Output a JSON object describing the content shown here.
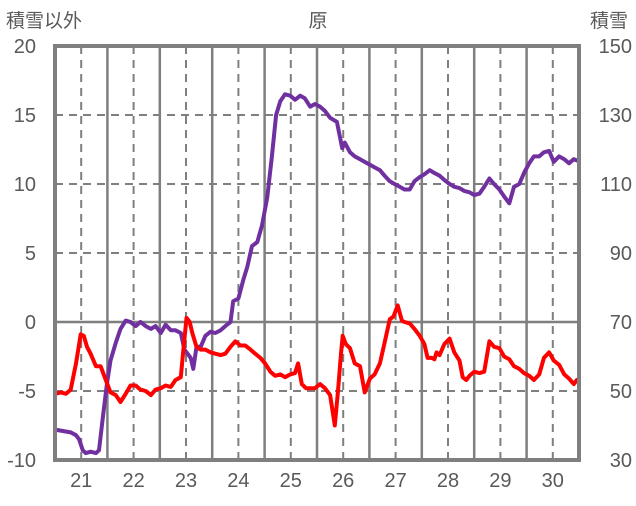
{
  "chart_data": {
    "type": "line",
    "title": "原",
    "ylabel_left": "積雪以外",
    "ylabel_right": "積雪",
    "xlim": [
      20.5,
      30.5
    ],
    "ylim_left": [
      -10,
      20
    ],
    "ylim_right": [
      30,
      150
    ],
    "x_ticks": [
      "21",
      "22",
      "23",
      "24",
      "25",
      "26",
      "27",
      "28",
      "29",
      "30"
    ],
    "y_ticks_left": [
      "-10",
      "-5",
      "0",
      "5",
      "10",
      "15",
      "20"
    ],
    "y_ticks_right": [
      "30",
      "50",
      "70",
      "90",
      "110",
      "130",
      "150"
    ],
    "grid": true,
    "series": [
      {
        "name": "積雪",
        "axis": "right",
        "color": "#7030a0",
        "x": [
          20.5,
          20.8,
          20.9,
          20.96,
          21.03,
          21.09,
          21.18,
          21.28,
          21.34,
          21.41,
          21.49,
          21.56,
          21.66,
          21.75,
          21.85,
          21.94,
          22.04,
          22.13,
          22.23,
          22.33,
          22.42,
          22.52,
          22.61,
          22.71,
          22.8,
          22.9,
          22.97,
          23.03,
          23.09,
          23.14,
          23.2,
          23.28,
          23.37,
          23.47,
          23.56,
          23.66,
          23.75,
          23.85,
          23.9,
          24.0,
          24.09,
          24.17,
          24.26,
          24.36,
          24.45,
          24.55,
          24.64,
          24.72,
          24.8,
          24.89,
          24.99,
          25.08,
          25.18,
          25.27,
          25.37,
          25.46,
          25.56,
          25.65,
          25.75,
          25.88,
          25.98,
          26.03,
          26.13,
          26.22,
          26.32,
          26.41,
          26.51,
          26.6,
          26.7,
          26.79,
          26.89,
          26.98,
          27.08,
          27.17,
          27.27,
          27.36,
          27.46,
          27.55,
          27.65,
          27.74,
          27.84,
          27.93,
          28.03,
          28.12,
          28.22,
          28.31,
          28.41,
          28.5,
          28.6,
          28.69,
          28.79,
          28.88,
          28.98,
          29.07,
          29.17,
          29.26,
          29.36,
          29.45,
          29.55,
          29.64,
          29.74,
          29.83,
          29.93,
          30.02,
          30.12,
          30.22,
          30.31,
          30.4,
          30.46
        ],
        "values": [
          38.8,
          38,
          37.2,
          36,
          32.8,
          32,
          32.4,
          32,
          32.8,
          42,
          52,
          58.8,
          64,
          68,
          70.4,
          70,
          68.8,
          70,
          68.8,
          68,
          68.8,
          66.8,
          69.2,
          67.6,
          67.6,
          66.8,
          62,
          60.8,
          59.6,
          56.4,
          62.8,
          62.8,
          66,
          67.2,
          66.8,
          67.6,
          68.8,
          70,
          76,
          76.8,
          82,
          86,
          92,
          93.2,
          98,
          106,
          118,
          130,
          134,
          136,
          135.6,
          134.4,
          135.6,
          134.8,
          132.4,
          133.2,
          132.4,
          131.2,
          129.2,
          128,
          120.4,
          122,
          119.2,
          118,
          117.2,
          116.4,
          115.6,
          114.8,
          114,
          112.4,
          110.8,
          110,
          109.2,
          108.4,
          108.4,
          110.8,
          112,
          112.8,
          114,
          113.2,
          112.4,
          111.2,
          110,
          109.2,
          108.8,
          108,
          107.6,
          106.8,
          107.2,
          109.2,
          111.6,
          110,
          108.4,
          106.4,
          104.4,
          109.2,
          110,
          113.2,
          116,
          118,
          118,
          119.2,
          119.6,
          116.4,
          118,
          117.2,
          116,
          117.2,
          116.8
        ]
      },
      {
        "name": "積雪以外",
        "axis": "left",
        "color": "#ff0000",
        "x": [
          20.5,
          20.61,
          20.71,
          20.8,
          20.9,
          20.99,
          21.05,
          21.11,
          21.18,
          21.28,
          21.37,
          21.47,
          21.56,
          21.66,
          21.75,
          21.85,
          21.94,
          22.04,
          22.13,
          22.23,
          22.33,
          22.42,
          22.52,
          22.61,
          22.71,
          22.8,
          22.9,
          22.95,
          23.01,
          23.07,
          23.12,
          23.2,
          23.28,
          23.37,
          23.47,
          23.56,
          23.66,
          23.75,
          23.85,
          23.94,
          24.04,
          24.13,
          24.23,
          24.32,
          24.42,
          24.51,
          24.61,
          24.7,
          24.8,
          24.89,
          24.99,
          25.08,
          25.14,
          25.21,
          25.29,
          25.37,
          25.46,
          25.56,
          25.65,
          25.75,
          25.84,
          25.9,
          25.96,
          25.99,
          26.05,
          26.13,
          26.22,
          26.32,
          26.41,
          26.51,
          26.6,
          26.7,
          26.79,
          26.89,
          26.96,
          27.04,
          27.12,
          27.17,
          27.27,
          27.36,
          27.46,
          27.55,
          27.61,
          27.69,
          27.74,
          27.78,
          27.84,
          27.93,
          28.03,
          28.12,
          28.22,
          28.28,
          28.35,
          28.41,
          28.5,
          28.6,
          28.69,
          28.79,
          28.88,
          28.98,
          29.07,
          29.17,
          29.26,
          29.36,
          29.45,
          29.55,
          29.64,
          29.74,
          29.83,
          29.93,
          30.02,
          30.12,
          30.22,
          30.31,
          30.4,
          30.46
        ],
        "values": [
          -5.2,
          -5.1,
          -5.2,
          -4.9,
          -3,
          -0.9,
          -1,
          -1.8,
          -2.3,
          -3.2,
          -3.2,
          -4.2,
          -5.1,
          -5.3,
          -5.8,
          -5.2,
          -4.6,
          -4.6,
          -4.9,
          -5.0,
          -5.3,
          -4.9,
          -4.8,
          -4.6,
          -4.7,
          -4.2,
          -4.0,
          -2,
          0.3,
          0.0,
          -0.8,
          -1.8,
          -2.0,
          -2.0,
          -2.2,
          -2.3,
          -2.4,
          -2.3,
          -1.8,
          -1.4,
          -1.7,
          -1.7,
          -2.0,
          -2.3,
          -2.6,
          -3.0,
          -3.6,
          -3.9,
          -3.8,
          -4.0,
          -3.8,
          -3.7,
          -3.0,
          -4.5,
          -4.8,
          -4.8,
          -4.8,
          -4.5,
          -4.8,
          -5.3,
          -7.5,
          -5,
          -2.2,
          -1,
          -1.6,
          -1.9,
          -3.0,
          -3.2,
          -5.1,
          -4.1,
          -3.8,
          -3.0,
          -1.5,
          0.2,
          0.4,
          1.2,
          0.1,
          0.0,
          -0.1,
          -0.5,
          -1.0,
          -1.6,
          -2.6,
          -2.6,
          -2.7,
          -2.2,
          -2.4,
          -1.6,
          -1.2,
          -2.2,
          -2.8,
          -4.0,
          -4.2,
          -3.9,
          -3.6,
          -3.7,
          -3.6,
          -1.4,
          -1.8,
          -1.9,
          -2.5,
          -2.7,
          -3.2,
          -3.4,
          -3.7,
          -3.9,
          -4.2,
          -3.8,
          -2.6,
          -2.2,
          -2.8,
          -3.1,
          -3.8,
          -4.1,
          -4.5,
          -4.2
        ]
      }
    ]
  }
}
